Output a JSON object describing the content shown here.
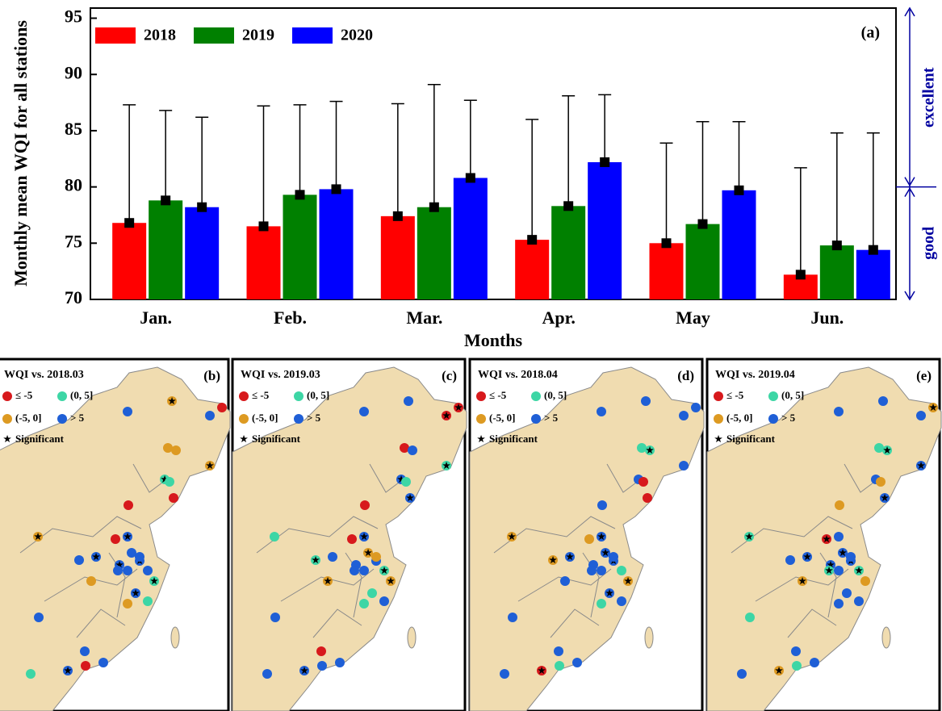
{
  "chart_data": {
    "type": "bar",
    "x_label": "Months",
    "y_label": "Monthly mean WQI for all stations",
    "panel_label": "(a)",
    "categories": [
      "Jan.",
      "Feb.",
      "Mar.",
      "Apr.",
      "May",
      "Jun."
    ],
    "series": [
      {
        "name": "2018",
        "color": "#ff0000",
        "values": [
          76.8,
          76.5,
          77.4,
          75.3,
          75.0,
          72.2
        ],
        "errors": [
          10.5,
          10.7,
          10.0,
          10.7,
          8.9,
          9.5
        ]
      },
      {
        "name": "2019",
        "color": "#008000",
        "values": [
          78.8,
          79.3,
          78.2,
          78.3,
          76.7,
          74.8
        ],
        "errors": [
          8.0,
          8.0,
          10.9,
          9.8,
          9.1,
          10.0
        ]
      },
      {
        "name": "2020",
        "color": "#0000ff",
        "values": [
          78.2,
          79.8,
          80.8,
          82.2,
          79.7,
          74.4
        ],
        "errors": [
          8.0,
          7.8,
          6.9,
          6.0,
          6.1,
          10.4
        ]
      }
    ],
    "ylim": [
      70,
      95.9
    ],
    "yticks": [
      70,
      75,
      80,
      85,
      90,
      95
    ],
    "legend": "top-left",
    "threshold": 80,
    "threshold_color": "#0000a0",
    "upper_class": "excellent",
    "lower_class": "good"
  },
  "maps": [
    {
      "title": "WQI vs. 2018.03",
      "label": "(b)"
    },
    {
      "title": "WQI vs. 2019.03",
      "label": "(c)"
    },
    {
      "title": "WQI vs. 2018.04",
      "label": "(d)"
    },
    {
      "title": "WQI vs. 2019.04",
      "label": "(e)"
    }
  ],
  "map_legend": {
    "items": [
      {
        "name": "≤ -5",
        "color": "#d7191c"
      },
      {
        "name": "(0, 5]",
        "color": "#3dd6a5"
      },
      {
        "name": "(-5, 0]",
        "color": "#dd9a22"
      },
      {
        "name": "> 5",
        "color": "#1f5fd6"
      }
    ],
    "significant": "Significant"
  }
}
